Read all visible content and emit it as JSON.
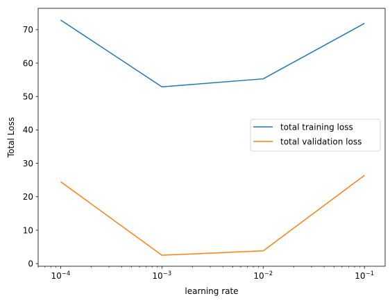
{
  "chart_data": {
    "type": "line",
    "xlabel": "learning rate",
    "ylabel": "Total Loss",
    "xscale": "log",
    "x": [
      0.0001,
      0.001,
      0.01,
      0.1
    ],
    "xlim": [
      6e-05,
      0.16
    ],
    "ylim": [
      -0.8,
      76.4
    ],
    "xticks": [
      {
        "value": 0.0001,
        "base": "10",
        "exp": "−4"
      },
      {
        "value": 0.001,
        "base": "10",
        "exp": "−3"
      },
      {
        "value": 0.01,
        "base": "10",
        "exp": "−2"
      },
      {
        "value": 0.1,
        "base": "10",
        "exp": "−1"
      }
    ],
    "yticks": [
      0,
      10,
      20,
      30,
      40,
      50,
      60,
      70
    ],
    "grid": false,
    "legend_position": "center-right",
    "series": [
      {
        "name": "total training loss",
        "color": "#1f77b4",
        "values": [
          72.9,
          52.9,
          55.3,
          71.9
        ]
      },
      {
        "name": "total validation loss",
        "color": "#ff7f0e",
        "values": [
          24.5,
          2.5,
          3.8,
          26.4
        ]
      }
    ]
  }
}
